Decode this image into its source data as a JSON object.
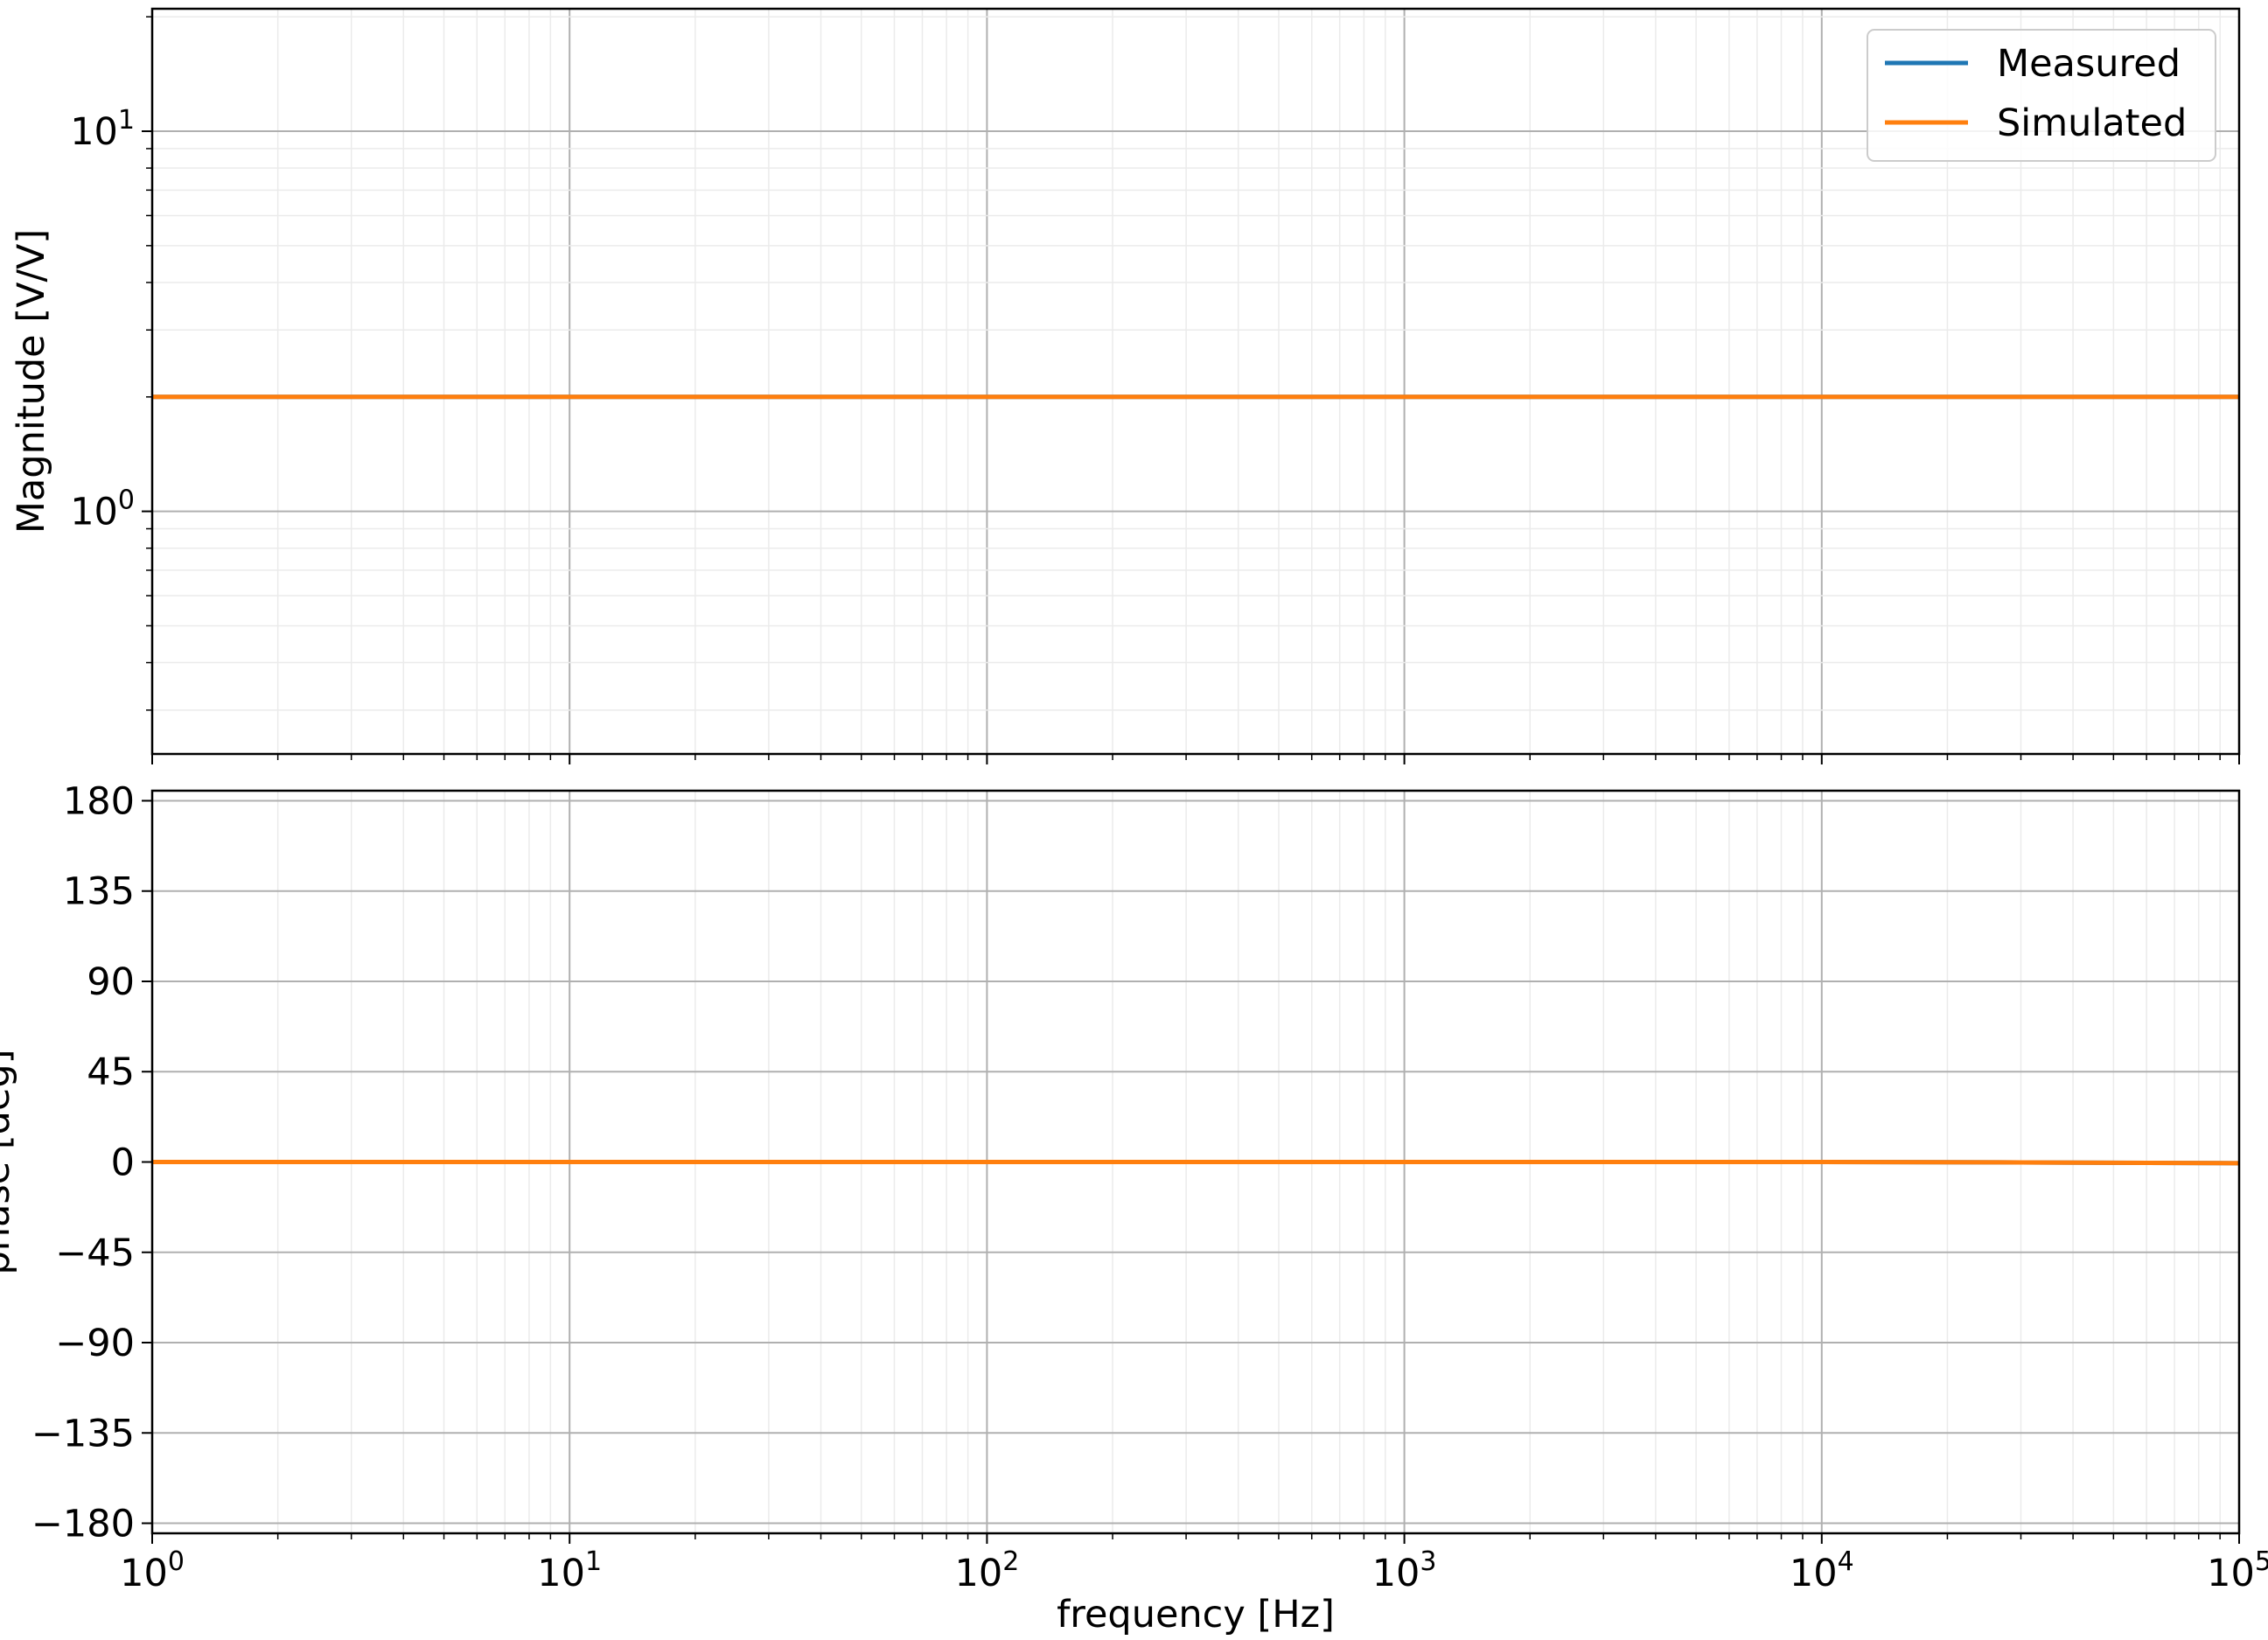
{
  "colors": {
    "measured": "#1f77b4",
    "simulated": "#ff7f0e",
    "major_grid": "#b0b0b0",
    "minor_grid": "#ebebeb",
    "axes": "#000000"
  },
  "chart_data": [
    {
      "type": "line",
      "panel": "magnitude",
      "xscale": "log",
      "yscale": "log",
      "xlim": [
        1,
        100000
      ],
      "ylim": [
        0.23,
        21
      ],
      "grid": true,
      "legend": "top-right",
      "xlabel": "",
      "ylabel": "Magnitude [V/V]",
      "y_ticks": [
        {
          "value": 1,
          "base": "10",
          "exp": "0"
        },
        {
          "value": 10,
          "base": "10",
          "exp": "1"
        }
      ],
      "series": [
        {
          "name": "Measured",
          "color": "#1f77b4",
          "x": [
            1,
            10,
            100,
            1000,
            10000,
            100000
          ],
          "y": [
            2,
            2,
            2,
            2,
            2,
            2
          ]
        },
        {
          "name": "Simulated",
          "color": "#ff7f0e",
          "x": [
            1,
            10,
            100,
            1000,
            10000,
            100000
          ],
          "y": [
            2,
            2,
            2,
            2,
            2,
            2
          ]
        }
      ]
    },
    {
      "type": "line",
      "panel": "phase",
      "xscale": "log",
      "yscale": "linear",
      "xlim": [
        1,
        100000
      ],
      "ylim": [
        -185,
        185
      ],
      "grid": true,
      "xlabel": "frequency [Hz]",
      "ylabel": "phase [deg]",
      "y_ticks": [
        {
          "value": 180,
          "label": "180"
        },
        {
          "value": 135,
          "label": "135"
        },
        {
          "value": 90,
          "label": "90"
        },
        {
          "value": 45,
          "label": "45"
        },
        {
          "value": 0,
          "label": "0"
        },
        {
          "value": -45,
          "label": "−45"
        },
        {
          "value": -90,
          "label": "−90"
        },
        {
          "value": -135,
          "label": "−135"
        },
        {
          "value": -180,
          "label": "−180"
        }
      ],
      "x_ticks": [
        {
          "value": 1,
          "base": "10",
          "exp": "0"
        },
        {
          "value": 10,
          "base": "10",
          "exp": "1"
        },
        {
          "value": 100,
          "base": "10",
          "exp": "2"
        },
        {
          "value": 1000,
          "base": "10",
          "exp": "3"
        },
        {
          "value": 10000,
          "base": "10",
          "exp": "4"
        },
        {
          "value": 100000,
          "base": "10",
          "exp": "5"
        }
      ],
      "series": [
        {
          "name": "Measured",
          "color": "#1f77b4",
          "x": [
            1,
            10,
            100,
            1000,
            10000,
            30000,
            100000
          ],
          "y": [
            0,
            0,
            0,
            0,
            0,
            -0.2,
            -0.6
          ]
        },
        {
          "name": "Simulated",
          "color": "#ff7f0e",
          "x": [
            1,
            10,
            100,
            1000,
            10000,
            30000,
            100000
          ],
          "y": [
            0,
            0,
            0,
            0,
            0,
            -0.2,
            -0.6
          ]
        }
      ]
    }
  ]
}
